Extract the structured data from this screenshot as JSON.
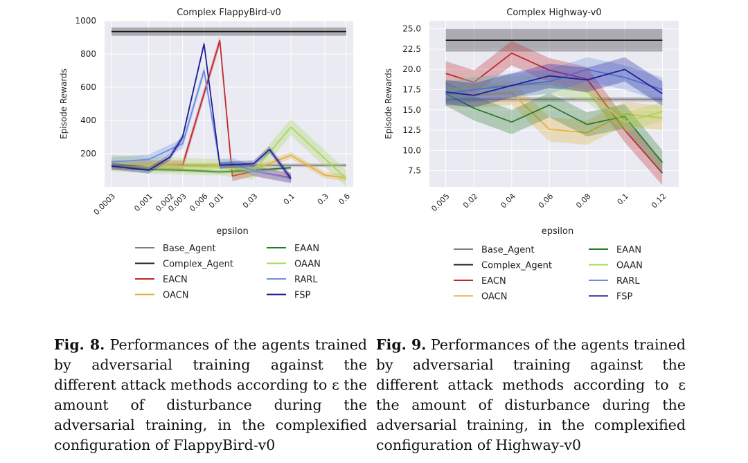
{
  "figures": [
    {
      "label": "Fig. 8.",
      "caption": "Performances of the agents trained by adversarial training against the different attack methods according to ε the amount of disturbance during the adversarial training, in the complexified configuration of FlappyBird-v0"
    },
    {
      "label": "Fig. 9.",
      "caption": "Performances of the agents trained by adversarial training against the different attack methods according to ε the amount of disturbance during the adversarial training, in the complexified configuration of Highway-v0"
    }
  ],
  "colors": {
    "Base_Agent": "#7f7f7f",
    "Complex_Agent": "#1a1a1a",
    "EACN": "#c0282d",
    "OACN": "#e3b23c",
    "EAAN": "#2a7a2a",
    "OAAN": "#a8d65a",
    "RARL": "#6a8fe0",
    "FSP": "#1f1f9a"
  },
  "chart_data": [
    {
      "type": "line",
      "title": "Complex FlappyBird-v0",
      "xlabel": "epsilon",
      "ylabel": "Episode Rewards",
      "x_scale": "log",
      "x": [
        0.0003,
        0.001,
        0.002,
        0.003,
        0.006,
        0.01,
        0.03,
        0.1,
        0.3,
        0.6
      ],
      "x_tick_labels": [
        "0.0003",
        "0.001",
        "0.002",
        "0.003",
        "0.006",
        "0.01",
        "0.03",
        "0.1",
        "0.3",
        "0.6"
      ],
      "xlim": [
        0.0003,
        0.6
      ],
      "ylim": [
        0,
        1000
      ],
      "y_ticks": [
        200,
        400,
        600,
        800,
        1000
      ],
      "grid": true,
      "legend": "bottom, two columns",
      "series": [
        {
          "name": "Base_Agent",
          "x": [
            0.0003,
            0.6
          ],
          "values": [
            130,
            130
          ],
          "band": 10
        },
        {
          "name": "Complex_Agent",
          "x": [
            0.0003,
            0.6
          ],
          "values": [
            935,
            935
          ],
          "band": 25
        },
        {
          "name": "EACN",
          "x": [
            0.0003,
            0.001,
            0.003,
            0.01,
            0.015,
            0.03,
            0.1
          ],
          "values": [
            130,
            130,
            130,
            880,
            65,
            95,
            55
          ],
          "band": 30
        },
        {
          "name": "OACN",
          "x": [
            0.0003,
            0.001,
            0.003,
            0.006,
            0.01,
            0.03,
            0.1,
            0.3,
            0.6
          ],
          "values": [
            140,
            135,
            125,
            125,
            130,
            105,
            190,
            70,
            55
          ],
          "band": 20
        },
        {
          "name": "EAAN",
          "x": [
            0.0003,
            0.001,
            0.003,
            0.006,
            0.01,
            0.03,
            0.1
          ],
          "values": [
            125,
            105,
            100,
            95,
            90,
            100,
            115
          ],
          "band": 10
        },
        {
          "name": "OAAN",
          "x": [
            0.0003,
            0.001,
            0.003,
            0.006,
            0.01,
            0.03,
            0.1,
            0.6
          ],
          "values": [
            145,
            130,
            125,
            120,
            120,
            95,
            360,
            50
          ],
          "band": 50
        },
        {
          "name": "RARL",
          "x": [
            0.0003,
            0.001,
            0.003,
            0.006,
            0.01,
            0.015,
            0.03,
            0.1
          ],
          "values": [
            150,
            165,
            260,
            700,
            135,
            145,
            95,
            50
          ],
          "band": 30
        },
        {
          "name": "FSP",
          "x": [
            0.0003,
            0.001,
            0.002,
            0.003,
            0.006,
            0.01,
            0.03,
            0.05,
            0.1
          ],
          "values": [
            125,
            100,
            180,
            300,
            860,
            130,
            140,
            225,
            50
          ],
          "band": 20
        }
      ]
    },
    {
      "type": "line",
      "title": "Complex Highway-v0",
      "xlabel": "epsilon",
      "ylabel": "Episode Rewards",
      "x": [
        0.005,
        0.02,
        0.04,
        0.06,
        0.08,
        0.1,
        0.12
      ],
      "x_tick_labels": [
        "0.005",
        "0.02",
        "0.04",
        "0.06",
        "0.08",
        "0.1",
        "0.12"
      ],
      "xlim": [
        0.0,
        0.125
      ],
      "ylim": [
        5.5,
        26.0
      ],
      "y_ticks": [
        7.5,
        10.0,
        12.5,
        15.0,
        17.5,
        20.0,
        22.5,
        25.0
      ],
      "grid": true,
      "legend": "bottom, two columns",
      "series": [
        {
          "name": "Base_Agent",
          "x": [
            0.005,
            0.12
          ],
          "values": [
            16.3,
            16.3
          ],
          "band": 0.3
        },
        {
          "name": "Complex_Agent",
          "x": [
            0.005,
            0.12
          ],
          "values": [
            23.6,
            23.6
          ],
          "band": 1.4
        },
        {
          "name": "EACN",
          "x": [
            0.005,
            0.02,
            0.04,
            0.06,
            0.08,
            0.1,
            0.12
          ],
          "values": [
            19.5,
            18.4,
            22.0,
            19.9,
            18.8,
            12.5,
            7.2
          ],
          "band": 1.5
        },
        {
          "name": "OACN",
          "x": [
            0.005,
            0.02,
            0.04,
            0.06,
            0.08,
            0.1,
            0.12
          ],
          "values": [
            17.0,
            16.8,
            17.1,
            12.6,
            12.2,
            14.5,
            14.0
          ],
          "band": 1.5
        },
        {
          "name": "EAAN",
          "x": [
            0.005,
            0.02,
            0.04,
            0.06,
            0.08,
            0.1,
            0.12
          ],
          "values": [
            17.0,
            15.2,
            13.5,
            15.6,
            13.2,
            14.2,
            8.5
          ],
          "band": 1.5
        },
        {
          "name": "OAAN",
          "x": [
            0.005,
            0.02,
            0.04,
            0.06,
            0.08,
            0.1,
            0.12
          ],
          "values": [
            17.5,
            17.9,
            18.0,
            18.2,
            17.2,
            13.5,
            14.8
          ],
          "band": 1.2
        },
        {
          "name": "RARL",
          "x": [
            0.005,
            0.02,
            0.04,
            0.06,
            0.08,
            0.1,
            0.12
          ],
          "values": [
            17.0,
            17.5,
            18.0,
            18.5,
            20.0,
            19.0,
            17.5
          ],
          "band": 1.5
        },
        {
          "name": "FSP",
          "x": [
            0.005,
            0.02,
            0.04,
            0.06,
            0.08,
            0.1,
            0.12
          ],
          "values": [
            17.2,
            16.8,
            18.0,
            19.2,
            18.7,
            20.0,
            17.0
          ],
          "band": 1.5
        }
      ]
    }
  ]
}
